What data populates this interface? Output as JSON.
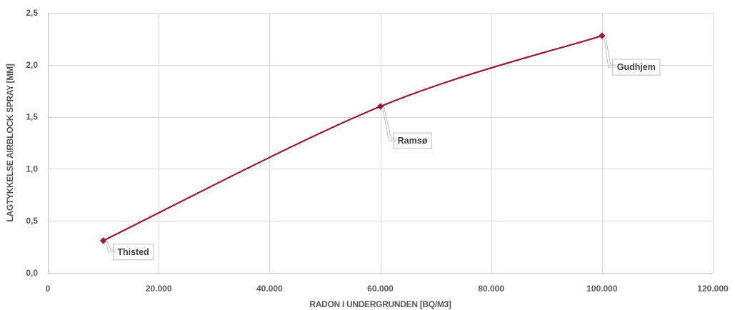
{
  "chart_data": {
    "type": "line",
    "title": "",
    "xlabel": "RADON I UNDERGRUNDEN [BQ/M3]",
    "ylabel": "LAGTYKKELSE AIRBLOCK SPRAY [MM]",
    "xlim": [
      0,
      120000
    ],
    "ylim": [
      0,
      2.5
    ],
    "x_ticks": [
      0,
      20000,
      40000,
      60000,
      80000,
      100000,
      120000
    ],
    "x_tick_labels": [
      "0",
      "20.000",
      "40.000",
      "60.000",
      "80.000",
      "100.000",
      "120.000"
    ],
    "y_ticks": [
      0,
      0.5,
      1.0,
      1.5,
      2.0,
      2.5
    ],
    "y_tick_labels": [
      "0,0",
      "0,5",
      "1,0",
      "1,5",
      "2,0",
      "2,5"
    ],
    "grid": true,
    "smoothed": true,
    "series": [
      {
        "color": "#9b1b30",
        "marker": "diamond",
        "points": [
          {
            "x": 10000,
            "y": 0.31,
            "label": "Thisted"
          },
          {
            "x": 60000,
            "y": 1.6,
            "label": "Ramsø"
          },
          {
            "x": 100000,
            "y": 2.28,
            "label": "Gudhjem"
          }
        ]
      }
    ]
  }
}
